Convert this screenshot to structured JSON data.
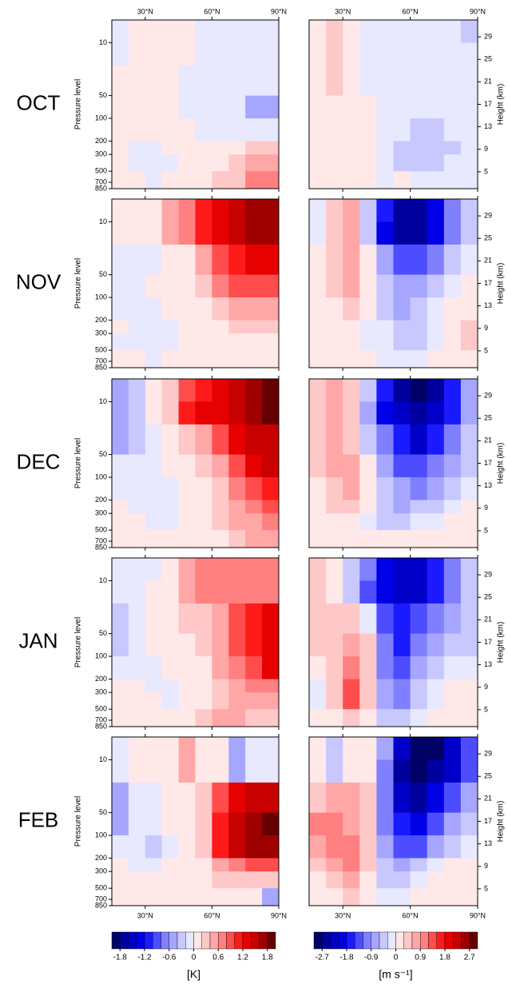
{
  "chart_data": {
    "type": "heatmap",
    "ylabel": "Pressure level",
    "y2label": "Height (km)",
    "xlim": [
      15,
      90
    ],
    "xticks": [
      {
        "value": 30,
        "label": "30°N"
      },
      {
        "value": 60,
        "label": "60°N"
      },
      {
        "value": 90,
        "label": "90°N"
      }
    ],
    "yscale": "log",
    "ylim": [
      5,
      850
    ],
    "yticks": [
      10,
      50,
      100,
      200,
      300,
      500,
      700,
      850
    ],
    "y2lim": [
      2,
      32
    ],
    "y2ticks": [
      5,
      9,
      13,
      17,
      21,
      25,
      29
    ],
    "lat_edges": [
      15,
      22.5,
      30,
      37.5,
      45,
      52.5,
      60,
      67.5,
      75,
      82.5,
      90
    ],
    "p_edges": [
      5,
      10,
      20,
      50,
      100,
      200,
      300,
      500,
      850
    ],
    "panels": [
      {
        "month": "OCT",
        "left": [
          [
            -0.1,
            0.1,
            0.1,
            0.1,
            0.1,
            -0.1,
            -0.1,
            -0.1,
            -0.1,
            -0.1
          ],
          [
            -0.1,
            0.1,
            0.1,
            0.1,
            0.1,
            -0.1,
            -0.1,
            -0.1,
            -0.1,
            -0.1
          ],
          [
            0.1,
            0.1,
            0.1,
            0.1,
            -0.1,
            -0.1,
            -0.1,
            -0.1,
            -0.1,
            -0.1
          ],
          [
            0.1,
            0.1,
            0.1,
            0.1,
            -0.1,
            -0.1,
            -0.1,
            -0.1,
            -0.5,
            -0.5
          ],
          [
            0.1,
            0.1,
            0.1,
            0.1,
            0.1,
            -0.1,
            -0.1,
            -0.1,
            -0.1,
            -0.1
          ],
          [
            0.1,
            -0.1,
            -0.1,
            0.1,
            0.1,
            0.1,
            0.1,
            0.1,
            0.3,
            0.3
          ],
          [
            0.1,
            -0.1,
            -0.1,
            -0.1,
            0.1,
            0.1,
            0.1,
            0.3,
            0.5,
            0.5
          ],
          [
            0.1,
            0.1,
            -0.1,
            0.1,
            0.1,
            0.1,
            0.3,
            0.3,
            0.7,
            0.7
          ]
        ],
        "right": [
          [
            0.1,
            0.5,
            0.1,
            -0.1,
            -0.1,
            -0.1,
            -0.1,
            -0.1,
            -0.1,
            -0.4
          ],
          [
            0.1,
            0.4,
            0.1,
            -0.1,
            -0.1,
            -0.1,
            -0.1,
            -0.1,
            -0.1,
            -0.1
          ],
          [
            0.1,
            0.4,
            0.1,
            -0.1,
            -0.1,
            -0.1,
            -0.1,
            -0.1,
            -0.1,
            -0.1
          ],
          [
            0.1,
            0.1,
            0.1,
            0.1,
            -0.1,
            -0.1,
            -0.1,
            -0.1,
            -0.1,
            -0.1
          ],
          [
            0.1,
            0.1,
            0.1,
            0.1,
            -0.1,
            -0.1,
            -0.4,
            -0.4,
            -0.1,
            -0.1
          ],
          [
            0.1,
            0.1,
            0.1,
            0.1,
            -0.1,
            -0.4,
            -0.4,
            -0.4,
            -0.4,
            -0.1
          ],
          [
            0.1,
            0.1,
            0.1,
            0.1,
            -0.1,
            -0.4,
            -0.4,
            -0.4,
            -0.1,
            -0.1
          ],
          [
            0.1,
            0.1,
            0.1,
            0.1,
            -0.1,
            0.1,
            -0.1,
            -0.1,
            -0.1,
            -0.1
          ]
        ]
      },
      {
        "month": "NOV",
        "left": [
          [
            0.1,
            0.1,
            0.1,
            0.5,
            0.7,
            1.1,
            1.3,
            1.5,
            1.7,
            1.7
          ],
          [
            0.1,
            0.1,
            0.1,
            0.5,
            0.7,
            1.1,
            1.3,
            1.5,
            1.7,
            1.7
          ],
          [
            -0.1,
            -0.1,
            -0.1,
            0.1,
            0.1,
            0.5,
            0.9,
            1.1,
            1.3,
            1.3
          ],
          [
            -0.1,
            -0.1,
            0.1,
            0.1,
            0.1,
            0.3,
            0.7,
            0.9,
            0.9,
            0.9
          ],
          [
            -0.1,
            -0.1,
            -0.1,
            0.1,
            0.1,
            0.1,
            0.3,
            0.5,
            0.5,
            0.5
          ],
          [
            0.1,
            -0.1,
            -0.1,
            -0.1,
            0.1,
            0.1,
            0.1,
            0.3,
            0.3,
            0.3
          ],
          [
            -0.1,
            -0.1,
            -0.1,
            -0.1,
            0.1,
            0.1,
            0.1,
            0.1,
            0.1,
            0.1
          ],
          [
            0.1,
            0.1,
            -0.1,
            0.1,
            0.1,
            0.1,
            0.1,
            0.1,
            0.1,
            0.1
          ]
        ],
        "right": [
          [
            -0.1,
            0.4,
            0.7,
            -0.4,
            -1.6,
            -2.5,
            -2.5,
            -1.9,
            -1.0,
            -0.4
          ],
          [
            -0.1,
            0.4,
            0.7,
            -0.4,
            -1.9,
            -2.5,
            -2.5,
            -1.9,
            -1.0,
            -0.4
          ],
          [
            0.1,
            0.4,
            0.7,
            0.1,
            -0.7,
            -1.3,
            -1.3,
            -1.0,
            -0.4,
            -0.1
          ],
          [
            0.1,
            0.4,
            0.7,
            0.1,
            -0.4,
            -0.7,
            -0.7,
            -0.4,
            -0.1,
            0.1
          ],
          [
            0.1,
            0.1,
            0.4,
            0.1,
            -0.4,
            -0.7,
            -0.4,
            -0.1,
            0.1,
            0.1
          ],
          [
            0.1,
            0.1,
            0.1,
            -0.1,
            -0.1,
            -0.4,
            -0.4,
            -0.1,
            0.1,
            0.4
          ],
          [
            0.1,
            0.1,
            0.1,
            -0.1,
            -0.1,
            -0.4,
            -0.4,
            -0.1,
            0.1,
            0.4
          ],
          [
            0.1,
            0.1,
            0.1,
            0.1,
            -0.1,
            -0.1,
            -0.1,
            0.1,
            0.1,
            0.1
          ]
        ]
      },
      {
        "month": "DEC",
        "left": [
          [
            -0.5,
            -0.3,
            0.1,
            0.3,
            0.9,
            1.1,
            1.3,
            1.5,
            1.7,
            1.9
          ],
          [
            -0.5,
            -0.3,
            0.1,
            0.3,
            1.1,
            1.3,
            1.3,
            1.5,
            1.7,
            1.9
          ],
          [
            -0.5,
            -0.3,
            -0.1,
            0.1,
            0.3,
            0.5,
            0.9,
            1.3,
            1.5,
            1.5
          ],
          [
            -0.1,
            -0.1,
            -0.1,
            0.1,
            0.1,
            0.3,
            0.5,
            0.9,
            1.3,
            1.5
          ],
          [
            -0.1,
            -0.1,
            -0.1,
            -0.1,
            0.1,
            0.1,
            0.3,
            0.7,
            0.9,
            1.1
          ],
          [
            0.1,
            -0.1,
            -0.1,
            -0.1,
            0.1,
            0.1,
            0.3,
            0.5,
            0.7,
            0.9
          ],
          [
            0.1,
            0.1,
            -0.1,
            -0.1,
            0.1,
            0.1,
            0.3,
            0.5,
            0.5,
            0.7
          ],
          [
            0.1,
            0.1,
            0.1,
            0.1,
            0.1,
            0.1,
            0.1,
            0.3,
            0.5,
            0.5
          ]
        ],
        "right": [
          [
            0.4,
            0.7,
            0.4,
            -0.4,
            -1.6,
            -2.5,
            -2.8,
            -2.5,
            -1.6,
            -0.7
          ],
          [
            0.4,
            0.7,
            0.4,
            -0.7,
            -1.9,
            -2.2,
            -2.5,
            -2.2,
            -1.6,
            -0.7
          ],
          [
            0.4,
            0.7,
            0.4,
            -0.4,
            -1.0,
            -1.6,
            -2.2,
            -1.6,
            -1.0,
            -0.4
          ],
          [
            0.4,
            0.7,
            0.7,
            0.1,
            -0.7,
            -1.3,
            -1.3,
            -1.0,
            -0.7,
            -0.4
          ],
          [
            0.1,
            0.4,
            0.7,
            0.1,
            -0.4,
            -0.7,
            -1.0,
            -0.7,
            -0.4,
            -0.1
          ],
          [
            0.1,
            0.4,
            0.4,
            0.1,
            -0.4,
            -0.7,
            -0.4,
            -0.4,
            -0.1,
            0.1
          ],
          [
            0.1,
            0.1,
            0.1,
            -0.1,
            -0.4,
            -0.4,
            -0.1,
            -0.1,
            0.1,
            0.1
          ],
          [
            0.1,
            0.1,
            0.1,
            0.1,
            0.1,
            0.1,
            0.1,
            0.1,
            0.1,
            0.1
          ]
        ]
      },
      {
        "month": "JAN",
        "left": [
          [
            -0.1,
            -0.1,
            -0.1,
            0.1,
            0.5,
            0.7,
            0.7,
            0.7,
            0.7,
            0.7
          ],
          [
            -0.1,
            -0.1,
            0.1,
            0.1,
            0.5,
            0.7,
            0.7,
            0.7,
            0.7,
            0.7
          ],
          [
            -0.3,
            -0.1,
            0.1,
            0.1,
            0.3,
            0.3,
            0.5,
            0.9,
            1.1,
            1.3
          ],
          [
            -0.3,
            -0.1,
            0.1,
            0.1,
            0.1,
            0.3,
            0.5,
            0.9,
            1.1,
            1.3
          ],
          [
            -0.1,
            -0.1,
            -0.1,
            0.1,
            0.1,
            0.1,
            0.5,
            0.7,
            0.9,
            1.3
          ],
          [
            0.1,
            0.1,
            -0.1,
            -0.1,
            0.1,
            0.1,
            0.3,
            0.5,
            0.7,
            0.7
          ],
          [
            0.1,
            0.1,
            0.1,
            -0.1,
            0.1,
            0.1,
            0.3,
            0.5,
            0.5,
            0.5
          ],
          [
            0.1,
            0.1,
            0.1,
            0.1,
            0.1,
            0.3,
            0.5,
            0.5,
            0.3,
            0.3
          ]
        ],
        "right": [
          [
            0.4,
            0.1,
            -0.4,
            -1.0,
            -1.9,
            -2.2,
            -2.2,
            -1.6,
            -1.0,
            -0.4
          ],
          [
            0.4,
            0.1,
            -0.4,
            -1.3,
            -1.9,
            -2.2,
            -2.2,
            -1.6,
            -1.0,
            -0.4
          ],
          [
            0.4,
            0.4,
            0.4,
            -0.1,
            -1.3,
            -1.6,
            -1.3,
            -1.0,
            -0.7,
            -0.4
          ],
          [
            0.4,
            0.4,
            0.7,
            0.4,
            -1.0,
            -1.6,
            -1.0,
            -0.7,
            -0.4,
            -0.4
          ],
          [
            0.1,
            0.4,
            1.0,
            0.4,
            -1.0,
            -1.3,
            -0.7,
            -0.4,
            -0.1,
            -0.1
          ],
          [
            -0.1,
            0.4,
            1.3,
            0.4,
            -0.7,
            -1.0,
            -0.4,
            -0.1,
            0.1,
            0.1
          ],
          [
            -0.1,
            0.4,
            1.3,
            0.4,
            -0.7,
            -1.0,
            -0.4,
            -0.1,
            0.1,
            0.1
          ],
          [
            0.1,
            0.1,
            0.4,
            0.1,
            -0.4,
            -0.4,
            -0.1,
            0.1,
            0.1,
            0.1
          ]
        ]
      },
      {
        "month": "FEB",
        "left": [
          [
            -0.1,
            0.1,
            0.1,
            0.1,
            0.5,
            0.1,
            0.1,
            -0.5,
            -0.1,
            -0.1
          ],
          [
            -0.1,
            0.1,
            0.1,
            0.1,
            0.5,
            0.1,
            0.1,
            -0.5,
            -0.1,
            -0.1
          ],
          [
            -0.5,
            -0.1,
            -0.1,
            0.1,
            0.1,
            0.3,
            0.9,
            1.3,
            1.5,
            1.5
          ],
          [
            -0.5,
            -0.1,
            -0.1,
            0.1,
            0.1,
            0.3,
            1.1,
            1.5,
            1.7,
            1.9
          ],
          [
            -0.1,
            -0.1,
            -0.3,
            -0.1,
            0.1,
            0.3,
            1.1,
            1.5,
            1.7,
            1.7
          ],
          [
            0.1,
            -0.1,
            -0.1,
            0.1,
            0.1,
            0.1,
            0.5,
            0.7,
            0.9,
            0.9
          ],
          [
            0.1,
            0.1,
            0.1,
            0.1,
            0.1,
            0.1,
            0.3,
            0.3,
            0.3,
            0.3
          ],
          [
            0.1,
            0.1,
            0.1,
            0.1,
            0.1,
            0.1,
            0.1,
            0.1,
            0.1,
            -0.5
          ]
        ],
        "right": [
          [
            0.1,
            -0.4,
            0.1,
            0.1,
            -0.7,
            -2.2,
            -2.8,
            -2.8,
            -2.2,
            -1.3
          ],
          [
            0.1,
            -0.4,
            0.1,
            0.1,
            -1.0,
            -2.5,
            -2.8,
            -2.5,
            -2.2,
            -1.3
          ],
          [
            0.4,
            0.7,
            0.7,
            0.4,
            -1.0,
            -2.2,
            -2.5,
            -1.9,
            -1.3,
            -0.7
          ],
          [
            1.0,
            1.0,
            0.7,
            0.4,
            -1.0,
            -1.6,
            -1.9,
            -1.3,
            -0.7,
            -0.4
          ],
          [
            0.7,
            1.0,
            1.0,
            0.4,
            -0.7,
            -1.3,
            -1.3,
            -0.7,
            -0.4,
            -0.1
          ],
          [
            0.4,
            0.7,
            1.0,
            0.4,
            -0.4,
            -0.7,
            -0.4,
            -0.1,
            0.1,
            0.1
          ],
          [
            0.1,
            0.4,
            0.7,
            0.1,
            -0.4,
            -0.4,
            -0.1,
            0.1,
            0.1,
            0.1
          ],
          [
            0.1,
            0.1,
            0.4,
            0.1,
            -0.1,
            -0.1,
            0.1,
            0.1,
            0.1,
            0.1
          ]
        ]
      }
    ],
    "colorbars": [
      {
        "units": "[K]",
        "range": [
          -2,
          2
        ],
        "ticks": [
          -1.8,
          -1.2,
          -0.6,
          0,
          0.6,
          1.2,
          1.8
        ],
        "colors": [
          "#000066",
          "#00009e",
          "#0000c8",
          "#0000e6",
          "#1a1aff",
          "#4d4dff",
          "#8080ff",
          "#a6a6ff",
          "#c8c8ff",
          "#e8e8ff",
          "#ffe8e8",
          "#ffc8c8",
          "#ffa6a6",
          "#ff8080",
          "#ff4d4d",
          "#ff1a1a",
          "#e60000",
          "#c80000",
          "#9e0000",
          "#660000"
        ]
      },
      {
        "units": "[m s⁻¹]",
        "range": [
          -3,
          3
        ],
        "ticks": [
          -2.7,
          -1.8,
          -0.9,
          0,
          0.9,
          1.8,
          2.7
        ],
        "colors": [
          "#000066",
          "#00009e",
          "#0000c8",
          "#0000e6",
          "#1a1aff",
          "#4d4dff",
          "#8080ff",
          "#a6a6ff",
          "#c8c8ff",
          "#e8e8ff",
          "#ffe8e8",
          "#ffc8c8",
          "#ffa6a6",
          "#ff8080",
          "#ff4d4d",
          "#ff1a1a",
          "#e60000",
          "#c80000",
          "#9e0000",
          "#660000"
        ]
      }
    ]
  }
}
